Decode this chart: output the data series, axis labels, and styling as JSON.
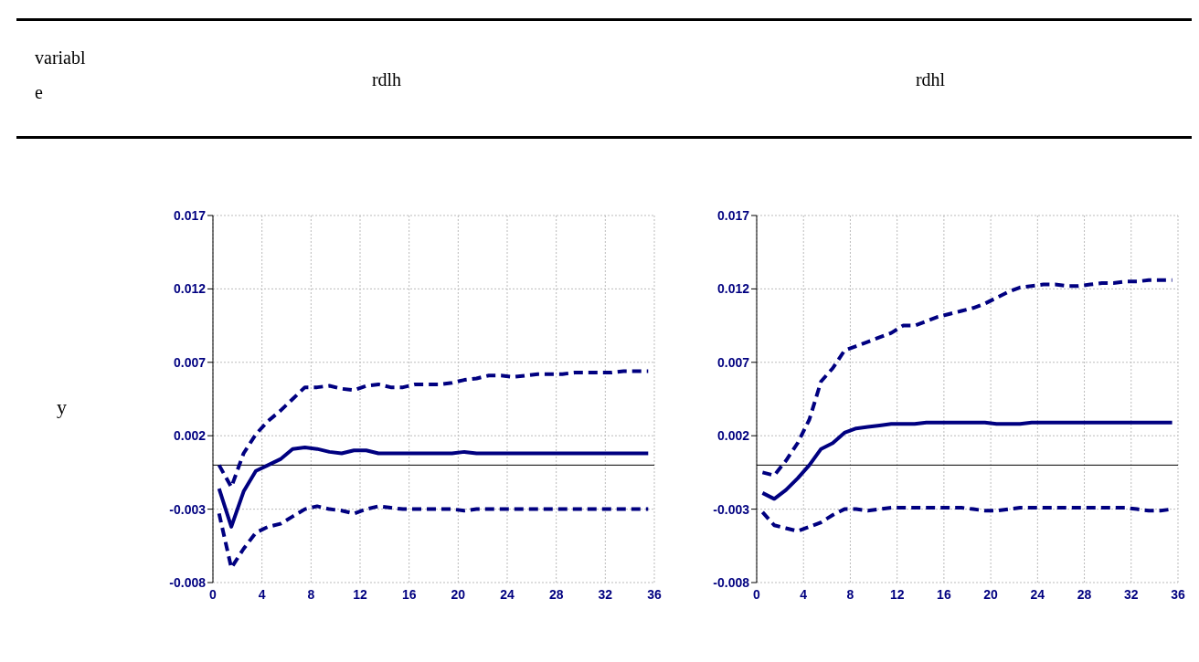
{
  "chart_data": [
    {
      "type": "line",
      "title": "rdlh",
      "annotations": [
        "variable",
        "y"
      ],
      "grid": true,
      "xlim": [
        0,
        36
      ],
      "xticks": [
        0,
        4,
        8,
        12,
        16,
        20,
        24,
        28,
        32,
        36
      ],
      "ylim": [
        -0.008,
        0.017
      ],
      "yticks": [
        -0.008,
        -0.003,
        0.002,
        0.007,
        0.012,
        0.017
      ],
      "x": [
        0.5,
        1.5,
        2.5,
        3.5,
        4.5,
        5.5,
        6.5,
        7.5,
        8.5,
        9.5,
        10.5,
        11.5,
        12.5,
        13.5,
        14.5,
        15.5,
        16.5,
        17.5,
        18.5,
        19.5,
        20.5,
        21.5,
        22.5,
        23.5,
        24.5,
        25.5,
        26.5,
        27.5,
        28.5,
        29.5,
        30.5,
        31.5,
        32.5,
        33.5,
        34.5,
        35.5
      ],
      "series": [
        {
          "color": "#000080",
          "line_style": "solid",
          "values": [
            -0.0016,
            -0.0042,
            -0.0018,
            -0.0004,
            0.0,
            0.0004,
            0.0011,
            0.0012,
            0.0011,
            0.0009,
            0.0008,
            0.001,
            0.001,
            0.0008,
            0.0008,
            0.0008,
            0.0008,
            0.0008,
            0.0008,
            0.0008,
            0.0009,
            0.0008,
            0.0008,
            0.0008,
            0.0008,
            0.0008,
            0.0008,
            0.0008,
            0.0008,
            0.0008,
            0.0008,
            0.0008,
            0.0008,
            0.0008,
            0.0008,
            0.0008
          ]
        },
        {
          "color": "#000080",
          "line_style": "dashed",
          "values": [
            0.0,
            -0.0015,
            0.0008,
            0.0021,
            0.003,
            0.0037,
            0.0045,
            0.0053,
            0.0053,
            0.0054,
            0.0052,
            0.0051,
            0.0054,
            0.0055,
            0.0053,
            0.0053,
            0.0055,
            0.0055,
            0.0055,
            0.0056,
            0.0058,
            0.0059,
            0.0061,
            0.0061,
            0.006,
            0.0061,
            0.0062,
            0.0062,
            0.0062,
            0.0063,
            0.0063,
            0.0063,
            0.0063,
            0.0064,
            0.0064,
            0.0064
          ]
        },
        {
          "color": "#000080",
          "line_style": "dashed",
          "values": [
            -0.0033,
            -0.007,
            -0.0057,
            -0.0046,
            -0.0042,
            -0.004,
            -0.0035,
            -0.003,
            -0.0028,
            -0.003,
            -0.0031,
            -0.0033,
            -0.003,
            -0.0028,
            -0.0029,
            -0.003,
            -0.003,
            -0.003,
            -0.003,
            -0.003,
            -0.0031,
            -0.003,
            -0.003,
            -0.003,
            -0.003,
            -0.003,
            -0.003,
            -0.003,
            -0.003,
            -0.003,
            -0.003,
            -0.003,
            -0.003,
            -0.003,
            -0.003,
            -0.003
          ]
        }
      ]
    },
    {
      "type": "line",
      "title": "rdhl",
      "grid": true,
      "xlim": [
        0,
        36
      ],
      "xticks": [
        0,
        4,
        8,
        12,
        16,
        20,
        24,
        28,
        32,
        36
      ],
      "ylim": [
        -0.008,
        0.017
      ],
      "yticks": [
        -0.008,
        -0.003,
        0.002,
        0.007,
        0.012,
        0.017
      ],
      "x": [
        0.5,
        1.5,
        2.5,
        3.5,
        4.5,
        5.5,
        6.5,
        7.5,
        8.5,
        9.5,
        10.5,
        11.5,
        12.5,
        13.5,
        14.5,
        15.5,
        16.5,
        17.5,
        18.5,
        19.5,
        20.5,
        21.5,
        22.5,
        23.5,
        24.5,
        25.5,
        26.5,
        27.5,
        28.5,
        29.5,
        30.5,
        31.5,
        32.5,
        33.5,
        34.5,
        35.5
      ],
      "series": [
        {
          "color": "#000080",
          "line_style": "solid",
          "values": [
            -0.0019,
            -0.0023,
            -0.0017,
            -0.0009,
            0.0,
            0.0011,
            0.0015,
            0.0022,
            0.0025,
            0.0026,
            0.0027,
            0.0028,
            0.0028,
            0.0028,
            0.0029,
            0.0029,
            0.0029,
            0.0029,
            0.0029,
            0.0029,
            0.0028,
            0.0028,
            0.0028,
            0.0029,
            0.0029,
            0.0029,
            0.0029,
            0.0029,
            0.0029,
            0.0029,
            0.0029,
            0.0029,
            0.0029,
            0.0029,
            0.0029,
            0.0029
          ]
        },
        {
          "color": "#000080",
          "line_style": "dashed",
          "values": [
            -0.0005,
            -0.0007,
            0.0003,
            0.0015,
            0.0031,
            0.0057,
            0.0066,
            0.0078,
            0.0081,
            0.0084,
            0.0087,
            0.009,
            0.0095,
            0.0095,
            0.0098,
            0.0101,
            0.0103,
            0.0105,
            0.0107,
            0.011,
            0.0114,
            0.0118,
            0.0121,
            0.0122,
            0.0123,
            0.0123,
            0.0122,
            0.0122,
            0.0123,
            0.0124,
            0.0124,
            0.0125,
            0.0125,
            0.0126,
            0.0126,
            0.0126
          ]
        },
        {
          "color": "#000080",
          "line_style": "dashed",
          "values": [
            -0.0032,
            -0.0041,
            -0.0043,
            -0.0045,
            -0.0042,
            -0.0039,
            -0.0034,
            -0.003,
            -0.003,
            -0.0031,
            -0.003,
            -0.0029,
            -0.0029,
            -0.0029,
            -0.0029,
            -0.0029,
            -0.0029,
            -0.0029,
            -0.003,
            -0.0031,
            -0.0031,
            -0.003,
            -0.0029,
            -0.0029,
            -0.0029,
            -0.0029,
            -0.0029,
            -0.0029,
            -0.0029,
            -0.0029,
            -0.0029,
            -0.0029,
            -0.003,
            -0.0031,
            -0.0031,
            -0.003
          ]
        }
      ]
    }
  ]
}
